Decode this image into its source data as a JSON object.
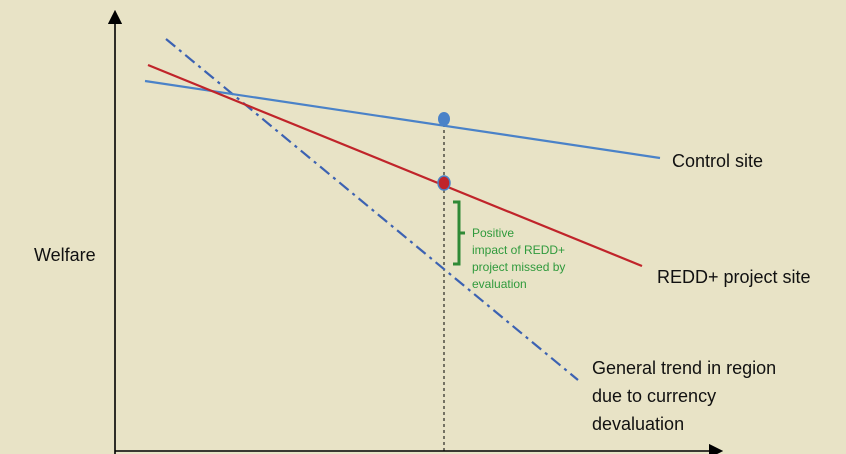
{
  "colors": {
    "background": "#e8e3c6",
    "control_line": "#4a82c8",
    "project_line": "#c0242a",
    "trend_line": "#3c62b2",
    "impact_bracket": "#2f8a36",
    "impact_text": "#2f9a3c",
    "axis": "#000000"
  },
  "axes": {
    "y_label": "Welfare"
  },
  "lines": {
    "control": {
      "label": "Control site"
    },
    "project": {
      "label": "REDD+ project site"
    },
    "trend": {
      "label_lines": [
        "General trend in region",
        "due to currency",
        "devaluation"
      ]
    }
  },
  "annotation": {
    "text_lines": [
      "Positive",
      "impact of REDD+",
      "project missed by",
      "evaluation"
    ]
  }
}
